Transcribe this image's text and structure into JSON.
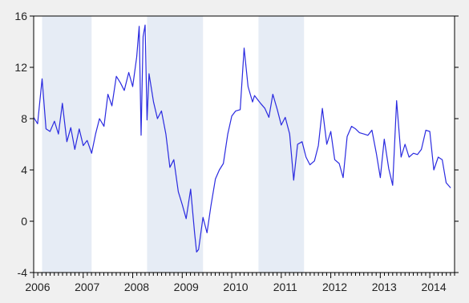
{
  "chart_data": {
    "type": "line",
    "xlabel": "",
    "ylabel": "",
    "xlim": [
      2006.0,
      2014.5
    ],
    "ylim": [
      -4,
      16
    ],
    "yticks": [
      -4,
      0,
      4,
      8,
      12,
      16
    ],
    "xtick_labels": [
      "2006",
      "2007",
      "2008",
      "2009",
      "2010",
      "2011",
      "2012",
      "2013",
      "2014"
    ],
    "grid": false,
    "colors": {
      "series": "#2a2ae0",
      "shading": "#e6ecf5",
      "background": "#ffffff",
      "frame": "#000000"
    },
    "shaded_regions": [
      [
        2006.17,
        2007.17
      ],
      [
        2008.29,
        2009.42
      ],
      [
        2010.54,
        2011.46
      ]
    ],
    "series": [
      {
        "x": [
          2006.0,
          2006.08,
          2006.17,
          2006.25,
          2006.33,
          2006.42,
          2006.5,
          2006.58,
          2006.67,
          2006.75,
          2006.83,
          2006.92,
          2007.0,
          2007.08,
          2007.17,
          2007.25,
          2007.33,
          2007.42,
          2007.5,
          2007.58,
          2007.67,
          2007.75,
          2007.83,
          2007.92,
          2008.0,
          2008.08,
          2008.13,
          2008.17,
          2008.21,
          2008.25,
          2008.29,
          2008.33,
          2008.42,
          2008.5,
          2008.58,
          2008.67,
          2008.75,
          2008.83,
          2008.92,
          2009.0,
          2009.08,
          2009.17,
          2009.25,
          2009.29,
          2009.33,
          2009.42,
          2009.5,
          2009.58,
          2009.67,
          2009.75,
          2009.83,
          2009.92,
          2010.0,
          2010.08,
          2010.17,
          2010.25,
          2010.33,
          2010.42,
          2010.46,
          2010.5,
          2010.58,
          2010.67,
          2010.75,
          2010.83,
          2010.92,
          2011.0,
          2011.08,
          2011.17,
          2011.25,
          2011.33,
          2011.42,
          2011.5,
          2011.58,
          2011.67,
          2011.75,
          2011.83,
          2011.92,
          2012.0,
          2012.08,
          2012.17,
          2012.25,
          2012.33,
          2012.42,
          2012.5,
          2012.58,
          2012.67,
          2012.75,
          2012.83,
          2012.92,
          2013.0,
          2013.08,
          2013.17,
          2013.25,
          2013.33,
          2013.42,
          2013.5,
          2013.58,
          2013.67,
          2013.75,
          2013.83,
          2013.92,
          2014.0,
          2014.08,
          2014.17,
          2014.25,
          2014.33,
          2014.42
        ],
        "values": [
          8.1,
          7.6,
          11.1,
          7.2,
          7.0,
          7.8,
          6.8,
          9.2,
          6.2,
          7.3,
          5.6,
          7.2,
          5.9,
          6.3,
          5.3,
          6.8,
          8.0,
          7.4,
          9.9,
          9.0,
          11.3,
          10.8,
          10.2,
          11.6,
          10.5,
          12.8,
          15.2,
          6.7,
          14.4,
          15.3,
          7.9,
          11.5,
          9.3,
          8.0,
          8.6,
          6.8,
          4.2,
          4.8,
          2.3,
          1.3,
          0.2,
          2.5,
          -0.9,
          -2.4,
          -2.2,
          0.3,
          -0.9,
          1.2,
          3.3,
          4.0,
          4.5,
          6.8,
          8.2,
          8.6,
          8.7,
          13.5,
          10.5,
          9.3,
          9.8,
          9.6,
          9.2,
          8.8,
          8.1,
          9.9,
          8.7,
          7.5,
          8.1,
          6.8,
          3.2,
          6.0,
          6.2,
          5.0,
          4.4,
          4.7,
          5.9,
          8.8,
          6.0,
          7.0,
          4.8,
          4.5,
          3.4,
          6.6,
          7.4,
          7.2,
          6.9,
          6.8,
          6.7,
          7.1,
          5.3,
          3.4,
          6.4,
          4.1,
          2.8,
          9.4,
          5.0,
          6.0,
          5.0,
          5.3,
          5.2,
          5.6,
          7.1,
          7.0,
          4.0,
          5.0,
          4.8,
          3.0,
          2.6
        ]
      }
    ]
  }
}
